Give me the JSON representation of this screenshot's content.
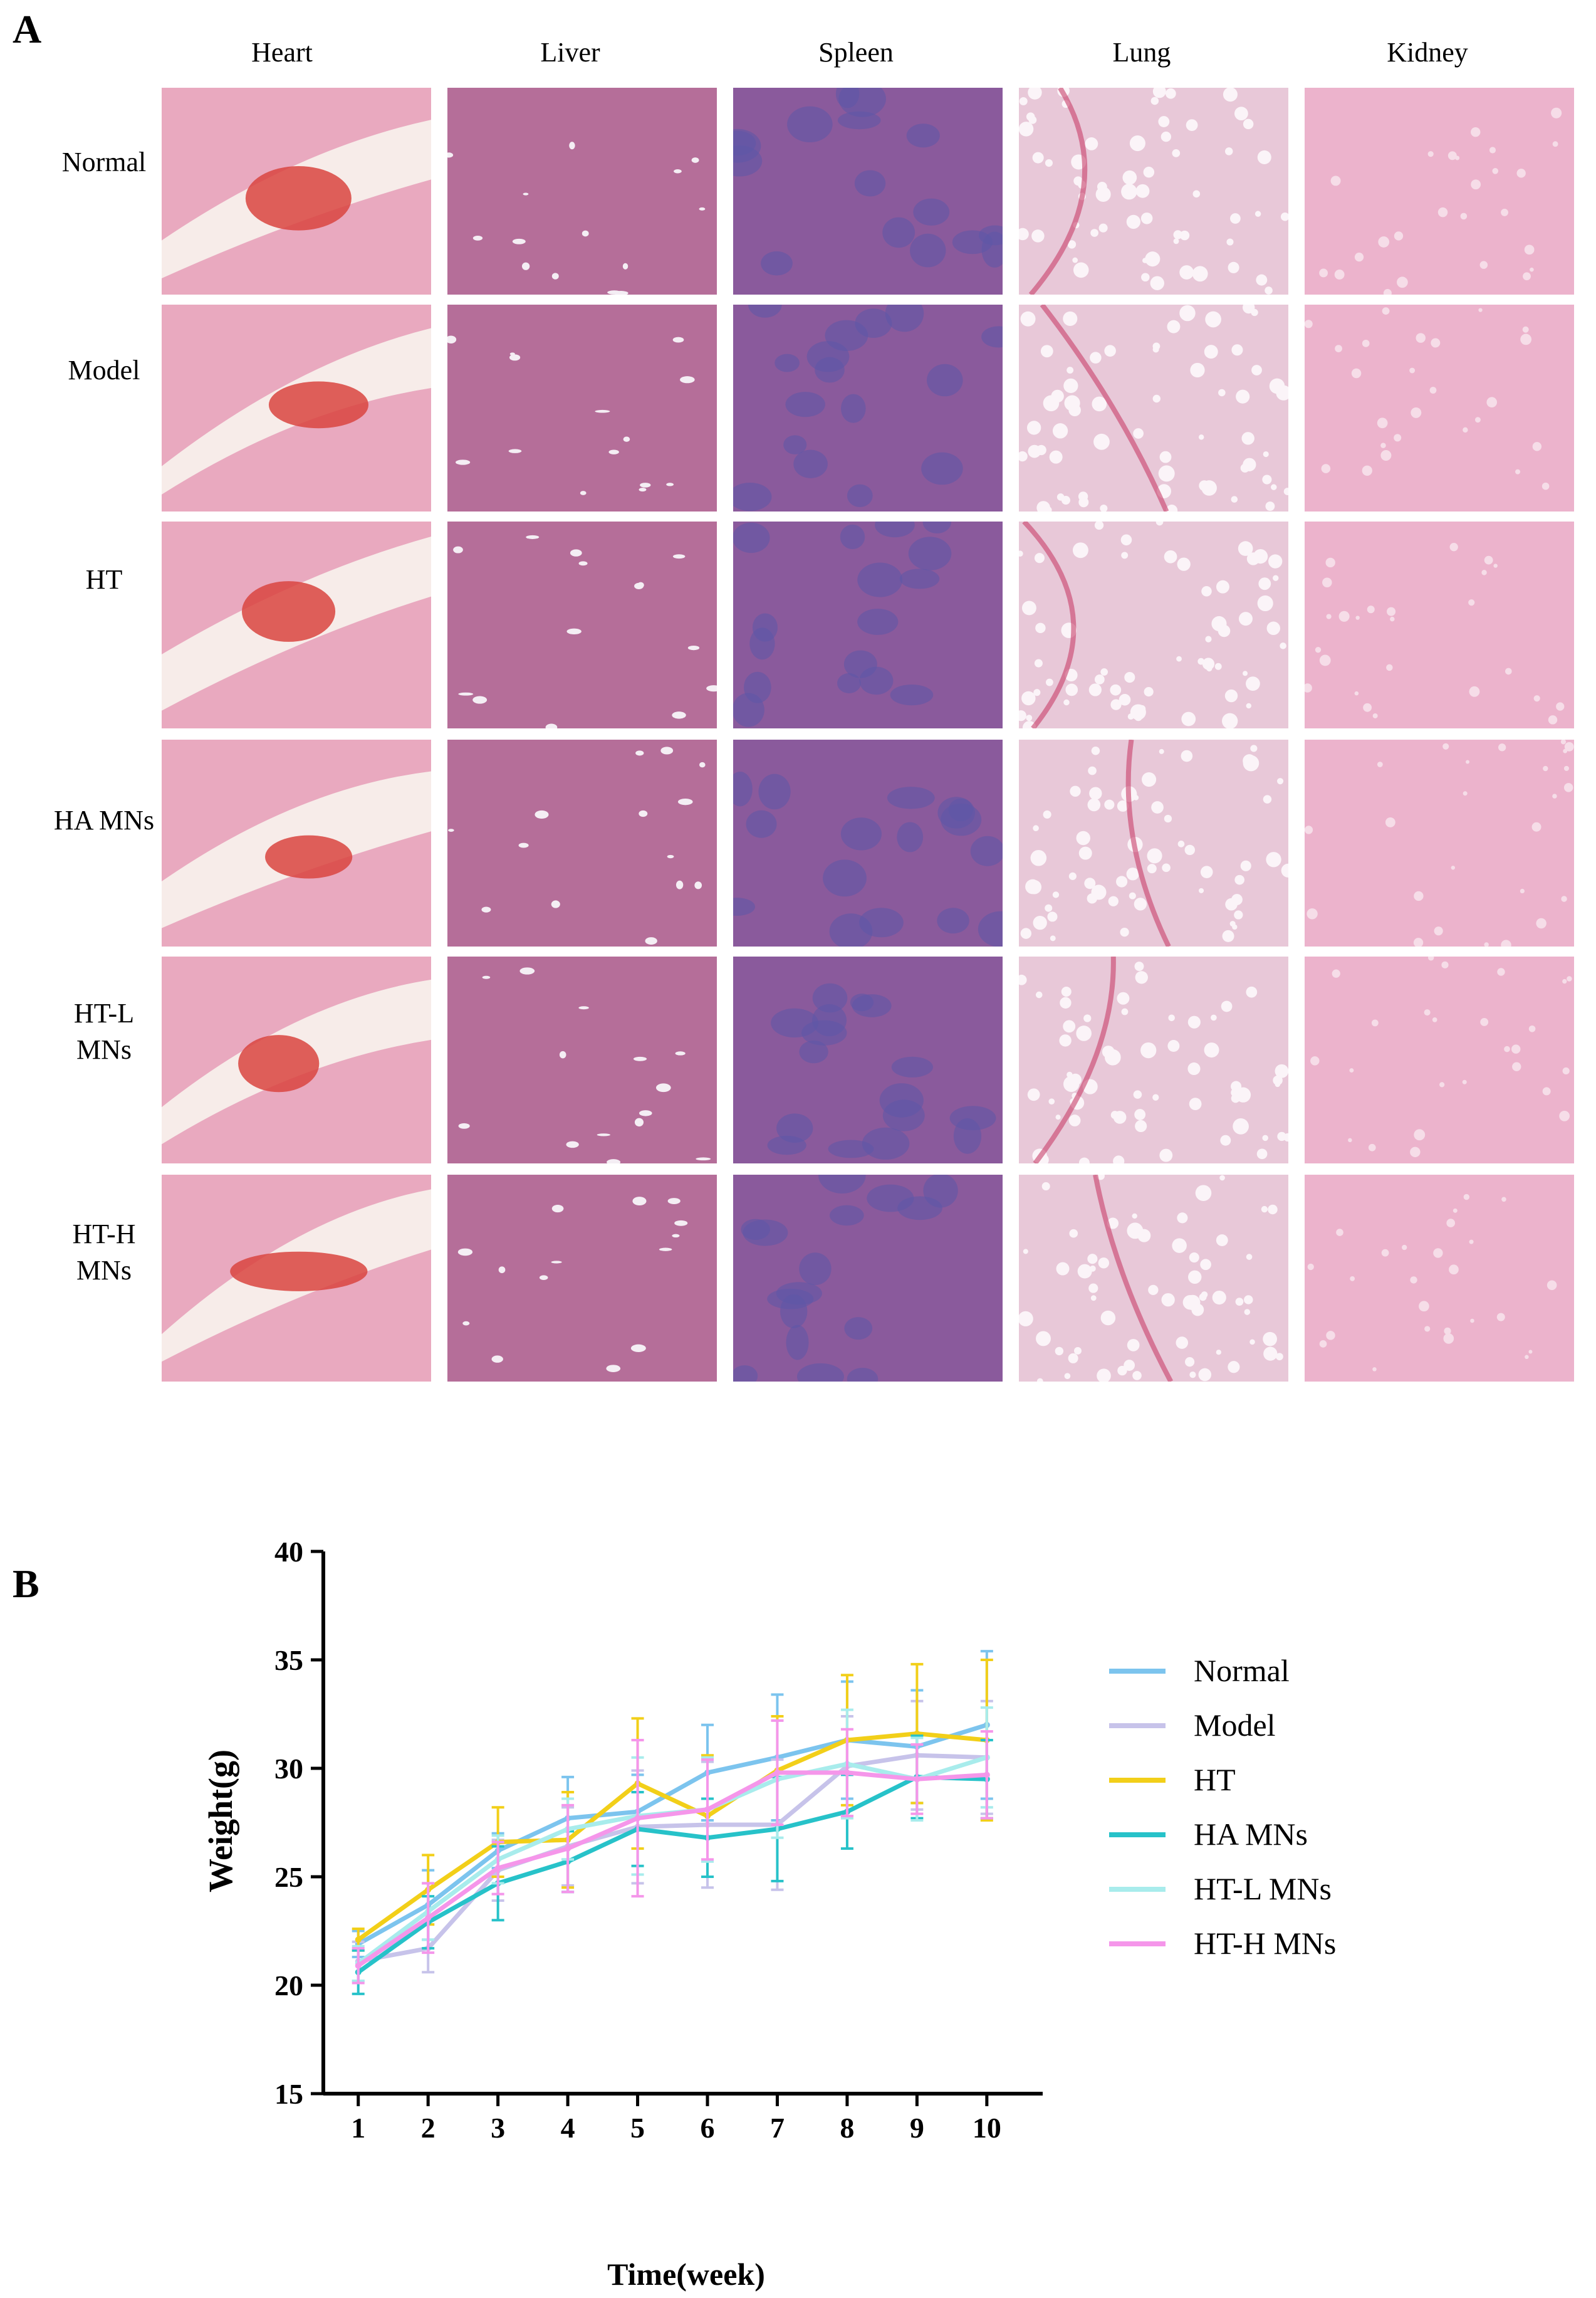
{
  "panel_a": {
    "letter": "A",
    "columns": [
      "Heart",
      "Liver",
      "Spleen",
      "Lung",
      "Kidney"
    ],
    "rows": [
      "Normal",
      "Model",
      "HT",
      "HA MNs",
      "HT-L MNs",
      "HT-H MNs"
    ],
    "tile_colors": {
      "Heart": "#e9a9bf",
      "Liver": "#b56e99",
      "Spleen": "#8a5a9c",
      "Lung": "#e8c8d8",
      "Kidney": "#ecb3cc"
    }
  },
  "panel_b": {
    "letter": "B"
  },
  "chart_data": {
    "type": "line",
    "xlabel": "Time(week)",
    "ylabel": "Weight(g)",
    "x": [
      1,
      2,
      3,
      4,
      5,
      6,
      7,
      8,
      9,
      10
    ],
    "xlim": [
      0.5,
      10.8
    ],
    "ylim": [
      15,
      40
    ],
    "yticks": [
      15,
      20,
      25,
      30,
      35,
      40
    ],
    "grid": false,
    "legend": "right",
    "series": [
      {
        "name": "Normal",
        "color": "#7cc4ee",
        "values": [
          21.9,
          23.7,
          26.2,
          27.7,
          28.0,
          29.8,
          30.5,
          31.3,
          31.0,
          32.0
        ],
        "errors": [
          0.6,
          1.6,
          0.8,
          1.9,
          1.7,
          2.2,
          2.9,
          2.7,
          2.6,
          3.4
        ]
      },
      {
        "name": "Model",
        "color": "#c7c3ea",
        "values": [
          21.1,
          21.7,
          25.3,
          26.4,
          27.3,
          27.4,
          27.4,
          30.1,
          30.6,
          30.5
        ],
        "errors": [
          0.9,
          1.1,
          1.4,
          1.8,
          2.6,
          2.9,
          3.0,
          2.3,
          2.5,
          2.6
        ]
      },
      {
        "name": "HT",
        "color": "#f2cf19",
        "values": [
          22.1,
          24.4,
          26.6,
          26.7,
          29.3,
          27.8,
          29.9,
          31.3,
          31.6,
          31.3
        ],
        "errors": [
          0.5,
          1.6,
          1.6,
          2.2,
          3.0,
          2.8,
          2.5,
          3.0,
          3.2,
          3.7
        ]
      },
      {
        "name": "HA MNs",
        "color": "#27c2c9",
        "values": [
          20.6,
          22.9,
          24.7,
          25.7,
          27.2,
          26.8,
          27.2,
          28.0,
          29.6,
          29.5
        ],
        "errors": [
          1.0,
          1.2,
          1.7,
          1.4,
          1.7,
          1.8,
          2.4,
          1.7,
          1.9,
          1.8
        ]
      },
      {
        "name": "HT-L MNs",
        "color": "#a8ecec",
        "values": [
          21.0,
          23.4,
          25.8,
          27.2,
          27.8,
          28.1,
          29.5,
          30.2,
          29.5,
          30.5
        ],
        "errors": [
          0.8,
          1.3,
          1.1,
          1.4,
          2.7,
          2.4,
          2.7,
          2.5,
          1.9,
          2.3
        ]
      },
      {
        "name": "HT-H MNs",
        "color": "#f596ea",
        "values": [
          20.9,
          23.1,
          25.4,
          26.3,
          27.7,
          28.1,
          29.8,
          29.8,
          29.5,
          29.7
        ],
        "errors": [
          0.8,
          1.6,
          1.2,
          2.0,
          3.6,
          2.3,
          2.4,
          2.0,
          1.6,
          2.0
        ]
      }
    ]
  }
}
